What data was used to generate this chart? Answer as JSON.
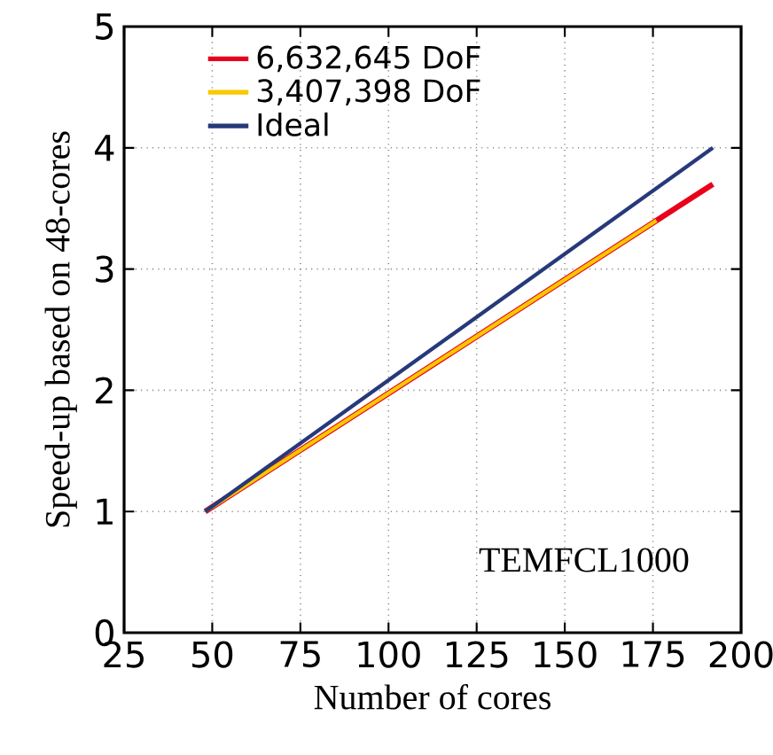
{
  "chart_data": {
    "type": "line",
    "xlabel": "Number of cores",
    "ylabel": "Speed-up based on 48-cores",
    "xlim": [
      25,
      200
    ],
    "xticks": [
      25,
      50,
      75,
      100,
      125,
      150,
      175,
      200
    ],
    "ylim": [
      0,
      5
    ],
    "yticks": [
      0,
      1,
      2,
      3,
      4,
      5
    ],
    "series": [
      {
        "name": "6,632,645 DoF",
        "color": "#e8001c",
        "x": [
          48,
          192
        ],
        "values": [
          1,
          3.7
        ]
      },
      {
        "name": "3,407,398 DoF",
        "color": "#f8c800",
        "x": [
          48,
          176
        ],
        "values": [
          1,
          3.4
        ]
      },
      {
        "name": "Ideal",
        "color": "#26397a",
        "x": [
          48,
          192
        ],
        "values": [
          1,
          4
        ]
      }
    ],
    "annotations": [
      "TEMFCL1000"
    ],
    "grid": true,
    "legend": "top left",
    "marker": "none",
    "line_style": "solid"
  }
}
